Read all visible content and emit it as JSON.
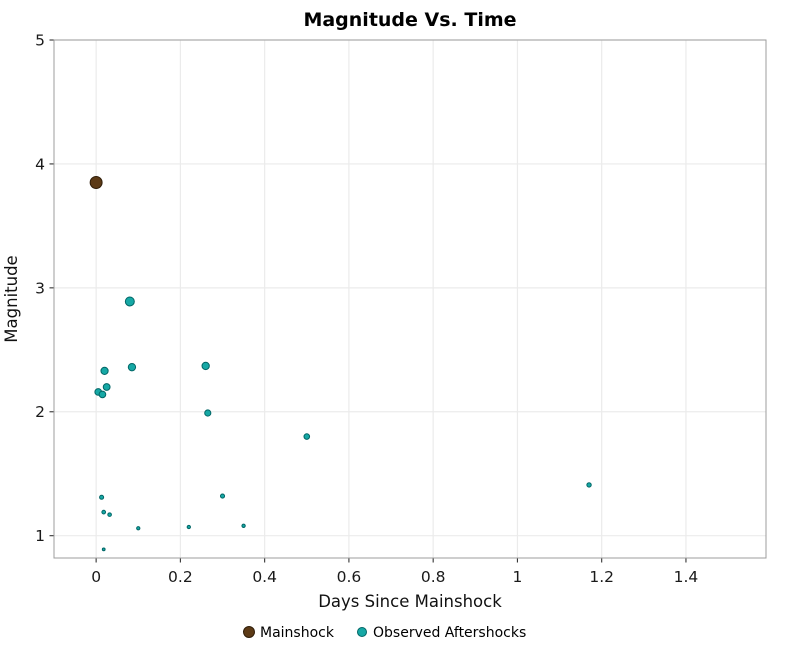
{
  "figure": {
    "title": "Magnitude Vs. Time"
  },
  "chart_data": {
    "type": "scatter",
    "title": "Magnitude Vs. Time",
    "xlabel": "Days Since Mainshock",
    "ylabel": "Magnitude",
    "xlim": [
      -0.1,
      1.59
    ],
    "ylim": [
      0.82,
      5.0
    ],
    "x_ticks": [
      0,
      0.2,
      0.4,
      0.6,
      0.8,
      1,
      1.2,
      1.4
    ],
    "y_ticks": [
      1,
      2,
      3,
      4,
      5
    ],
    "grid": true,
    "legend_position": "bottom-center",
    "marker_size_scale": 1.55,
    "colors": {
      "grid": "#ebebeb",
      "frame": "#9c9c9c",
      "tick": "#333333",
      "tick_label": "#1a1a1a"
    },
    "series": [
      {
        "name": "Mainshock",
        "color": "#5c3a16",
        "edge_color": "#2f1d09",
        "points": [
          {
            "x": 0.0,
            "y": 3.85
          }
        ]
      },
      {
        "name": "Observed Aftershocks",
        "color": "#16a8a5",
        "edge_color": "#016565",
        "points": [
          {
            "x": 0.005,
            "y": 2.16
          },
          {
            "x": 0.015,
            "y": 2.14
          },
          {
            "x": 0.02,
            "y": 2.33
          },
          {
            "x": 0.025,
            "y": 2.2
          },
          {
            "x": 0.08,
            "y": 2.89
          },
          {
            "x": 0.085,
            "y": 2.36
          },
          {
            "x": 0.26,
            "y": 2.37
          },
          {
            "x": 0.265,
            "y": 1.99
          },
          {
            "x": 0.5,
            "y": 1.8
          },
          {
            "x": 1.17,
            "y": 1.41
          },
          {
            "x": 0.013,
            "y": 1.31
          },
          {
            "x": 0.018,
            "y": 1.19
          },
          {
            "x": 0.032,
            "y": 1.17
          },
          {
            "x": 0.018,
            "y": 0.89
          },
          {
            "x": 0.1,
            "y": 1.06
          },
          {
            "x": 0.22,
            "y": 1.07
          },
          {
            "x": 0.3,
            "y": 1.32
          },
          {
            "x": 0.35,
            "y": 1.08
          }
        ]
      }
    ]
  }
}
